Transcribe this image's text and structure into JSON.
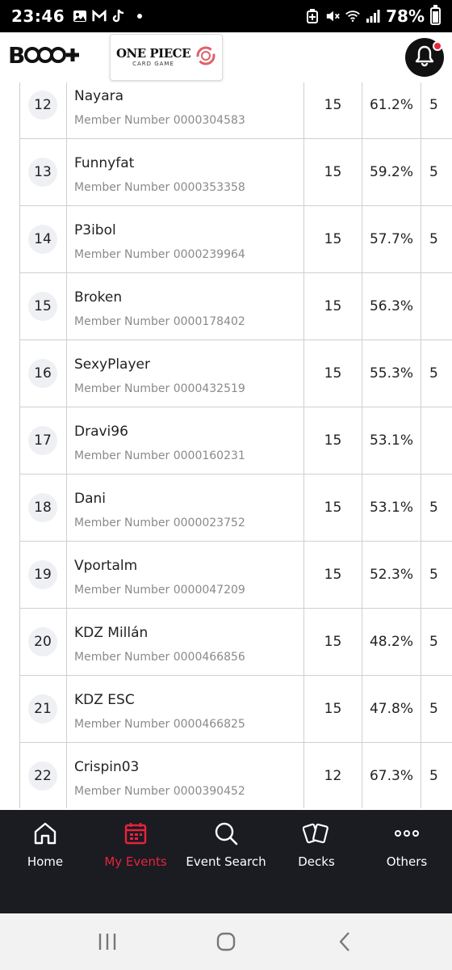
{
  "status_bar": {
    "time": "23:46",
    "battery": "78%",
    "left_icons": [
      "gallery-icon",
      "gmail-icon",
      "tiktok-icon"
    ],
    "right_icons": [
      "battery-saver-icon",
      "mute-icon",
      "wifi-icon",
      "signal-icon"
    ]
  },
  "header": {
    "brand_logo": "B",
    "game_logo_title": "ONE PIECE",
    "game_logo_subtitle": "CARD GAME"
  },
  "member_prefix": "Member Number",
  "rows": [
    {
      "rank": "12",
      "name": "Nayara",
      "member": "Member Number 0000304583",
      "points": "15",
      "pct": "61.2%",
      "extra": "5"
    },
    {
      "rank": "13",
      "name": "Funnyfat",
      "member": "Member Number 0000353358",
      "points": "15",
      "pct": "59.2%",
      "extra": "5"
    },
    {
      "rank": "14",
      "name": "P3ibol",
      "member": "Member Number 0000239964",
      "points": "15",
      "pct": "57.7%",
      "extra": "5"
    },
    {
      "rank": "15",
      "name": "Broken",
      "member": "Member Number 0000178402",
      "points": "15",
      "pct": "56.3%",
      "extra": ""
    },
    {
      "rank": "16",
      "name": "SexyPlayer",
      "member": "Member Number 0000432519",
      "points": "15",
      "pct": "55.3%",
      "extra": "5"
    },
    {
      "rank": "17",
      "name": "Dravi96",
      "member": "Member Number 0000160231",
      "points": "15",
      "pct": "53.1%",
      "extra": ""
    },
    {
      "rank": "18",
      "name": "Dani",
      "member": "Member Number 0000023752",
      "points": "15",
      "pct": "53.1%",
      "extra": "5"
    },
    {
      "rank": "19",
      "name": "Vportalm",
      "member": "Member Number 0000047209",
      "points": "15",
      "pct": "52.3%",
      "extra": "5"
    },
    {
      "rank": "20",
      "name": "KDZ Millán",
      "member": "Member Number 0000466856",
      "points": "15",
      "pct": "48.2%",
      "extra": "5"
    },
    {
      "rank": "21",
      "name": "KDZ ESC",
      "member": "Member Number 0000466825",
      "points": "15",
      "pct": "47.8%",
      "extra": "5"
    },
    {
      "rank": "22",
      "name": "Crispin03",
      "member": "Member Number 0000390452",
      "points": "12",
      "pct": "67.3%",
      "extra": "5"
    }
  ],
  "nav": {
    "items": [
      {
        "label": "Home",
        "icon": "home-icon"
      },
      {
        "label": "My Events",
        "icon": "calendar-icon",
        "active": true
      },
      {
        "label": "Event Search",
        "icon": "search-icon"
      },
      {
        "label": "Decks",
        "icon": "cards-icon"
      },
      {
        "label": "Others",
        "icon": "more-icon"
      }
    ],
    "active_color": "#e8233d"
  },
  "android_nav": [
    "recents-icon",
    "home-circle-icon",
    "back-icon"
  ]
}
